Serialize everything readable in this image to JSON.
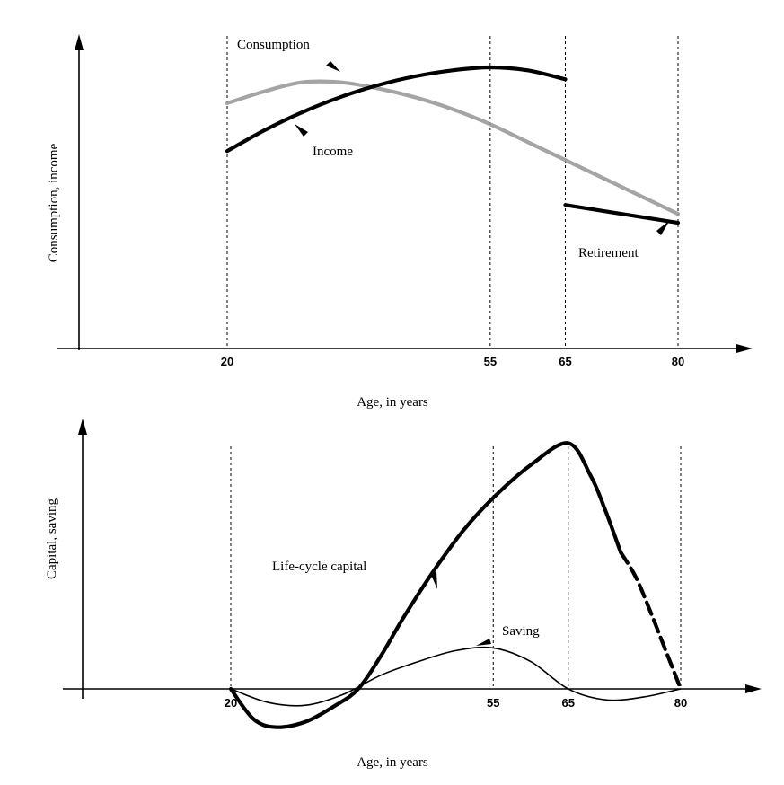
{
  "chart_data": [
    {
      "type": "line",
      "xlabel": "Age, in years",
      "ylabel": "Consumption, income",
      "x_ticks": [
        20,
        55,
        65,
        80
      ],
      "xlim": [
        0,
        85
      ],
      "ylim": [
        0,
        10
      ],
      "grid": false,
      "series": [
        {
          "name": "Consumption",
          "color": "#9a9a9a",
          "x": [
            20,
            25,
            30,
            35,
            40,
            45,
            50,
            55,
            60,
            65,
            70,
            75,
            80
          ],
          "y": [
            8.2,
            8.6,
            8.9,
            8.9,
            8.7,
            8.4,
            8.0,
            7.5,
            6.9,
            6.3,
            5.7,
            5.1,
            4.5
          ]
        },
        {
          "name": "Income",
          "color": "#000000",
          "x": [
            20,
            25,
            30,
            35,
            40,
            45,
            50,
            55,
            60,
            65
          ],
          "y": [
            6.6,
            7.3,
            7.9,
            8.4,
            8.8,
            9.1,
            9.3,
            9.4,
            9.3,
            9.0
          ]
        },
        {
          "name": "Retirement",
          "color": "#000000",
          "x": [
            65,
            80
          ],
          "y": [
            4.8,
            4.2
          ]
        }
      ]
    },
    {
      "type": "line",
      "xlabel": "Age, in years",
      "ylabel": "Capital, saving",
      "x_ticks": [
        20,
        55,
        65,
        80
      ],
      "xlim": [
        0,
        85
      ],
      "ylim": [
        -2,
        10
      ],
      "grid": false,
      "series": [
        {
          "name": "Life-cycle capital",
          "color": "#000000",
          "x": [
            20,
            23,
            26,
            30,
            34,
            37,
            40,
            43,
            47,
            51,
            55,
            60,
            65,
            68,
            70,
            72,
            74,
            76,
            78,
            80
          ],
          "y": [
            0,
            -1.1,
            -1.4,
            -1.2,
            -0.6,
            0,
            1.2,
            2.6,
            4.3,
            5.8,
            7.0,
            8.2,
            9.0,
            7.8,
            6.5,
            5.0,
            4.1,
            2.8,
            1.4,
            0
          ]
        },
        {
          "name": "Saving",
          "color": "#000000",
          "x": [
            20,
            25,
            30,
            35,
            40,
            45,
            50,
            55,
            60,
            65,
            70,
            75,
            80
          ],
          "y": [
            0,
            -0.5,
            -0.6,
            -0.2,
            0.5,
            1.0,
            1.4,
            1.5,
            1.0,
            0,
            -0.4,
            -0.3,
            0
          ]
        }
      ]
    }
  ],
  "chart_top": {
    "labels": {
      "consumption": "Consumption",
      "income": "Income",
      "retirement": "Retirement"
    }
  },
  "chart_bottom": {
    "labels": {
      "capital": "Life-cycle capital",
      "saving": "Saving"
    }
  }
}
